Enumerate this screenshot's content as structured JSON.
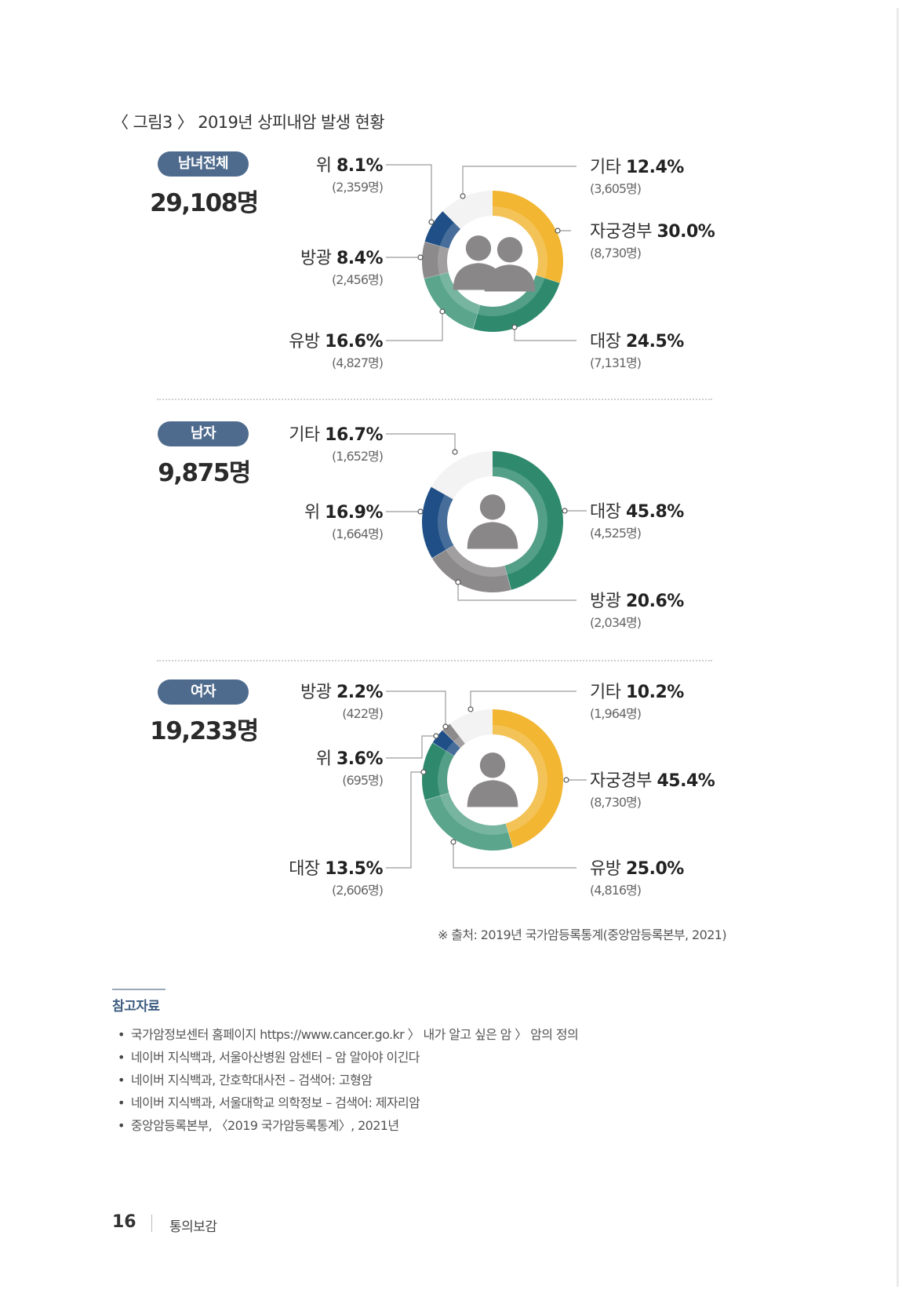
{
  "figure_title": "〈 그림3 〉 2019년 상피내암 발생 현황",
  "chart_data": [
    {
      "type": "pie",
      "style": "donut",
      "group": "남녀전체",
      "total_label": "29,108명",
      "slices": [
        {
          "name": "자궁경부",
          "percent": 30.0,
          "percent_label": "30.0%",
          "count_label": "(8,730명)",
          "color": "#f2b632"
        },
        {
          "name": "대장",
          "percent": 24.5,
          "percent_label": "24.5%",
          "count_label": "(7,131명)",
          "color": "#2f8a6d"
        },
        {
          "name": "유방",
          "percent": 16.6,
          "percent_label": "16.6%",
          "count_label": "(4,827명)",
          "color": "#5aa58c"
        },
        {
          "name": "방광",
          "percent": 8.4,
          "percent_label": "8.4%",
          "count_label": "(2,456명)",
          "color": "#8d8a8b"
        },
        {
          "name": "위",
          "percent": 8.1,
          "percent_label": "8.1%",
          "count_label": "(2,359명)",
          "color": "#1f4f86"
        },
        {
          "name": "기타",
          "percent": 12.4,
          "percent_label": "12.4%",
          "count_label": "(3,605명)",
          "color": "#f1f1f1"
        }
      ]
    },
    {
      "type": "pie",
      "style": "donut",
      "group": "남자",
      "total_label": "9,875명",
      "slices": [
        {
          "name": "대장",
          "percent": 45.8,
          "percent_label": "45.8%",
          "count_label": "(4,525명)",
          "color": "#2f8a6d"
        },
        {
          "name": "방광",
          "percent": 20.6,
          "percent_label": "20.6%",
          "count_label": "(2,034명)",
          "color": "#8d8a8b"
        },
        {
          "name": "위",
          "percent": 16.9,
          "percent_label": "16.9%",
          "count_label": "(1,664명)",
          "color": "#1f4f86"
        },
        {
          "name": "기타",
          "percent": 16.7,
          "percent_label": "16.7%",
          "count_label": "(1,652명)",
          "color": "#f1f1f1"
        }
      ]
    },
    {
      "type": "pie",
      "style": "donut",
      "group": "여자",
      "total_label": "19,233명",
      "slices": [
        {
          "name": "자궁경부",
          "percent": 45.4,
          "percent_label": "45.4%",
          "count_label": "(8,730명)",
          "color": "#f2b632"
        },
        {
          "name": "유방",
          "percent": 25.0,
          "percent_label": "25.0%",
          "count_label": "(4,816명)",
          "color": "#5aa58c"
        },
        {
          "name": "대장",
          "percent": 13.5,
          "percent_label": "13.5%",
          "count_label": "(2,606명)",
          "color": "#2f8a6d"
        },
        {
          "name": "위",
          "percent": 3.6,
          "percent_label": "3.6%",
          "count_label": "(695명)",
          "color": "#1f4f86"
        },
        {
          "name": "방광",
          "percent": 2.2,
          "percent_label": "2.2%",
          "count_label": "(422명)",
          "color": "#8d8a8b"
        },
        {
          "name": "기타",
          "percent": 10.2,
          "percent_label": "10.2%",
          "count_label": "(1,964명)",
          "color": "#f1f1f1"
        }
      ]
    }
  ],
  "source": "※ 출처: 2019년 국가암등록통계(중앙암등록본부, 2021)",
  "references": {
    "title": "참고자료",
    "items": [
      "국가암정보센터 홈페이지 https://www.cancer.go.kr 〉 내가 알고 싶은 암 〉 암의 정의",
      "네이버 지식백과, 서울아산병원 암센터 – 암 알아야 이긴다",
      "네이버 지식백과, 간호학대사전 – 검색어: 고형암",
      "네이버 지식백과, 서울대학교 의학정보 – 검색어: 제자리암",
      "중앙암등록본부, 〈2019 국가암등록통계〉, 2021년"
    ]
  },
  "footer": {
    "page_number": "16",
    "publication": "통의보감"
  }
}
